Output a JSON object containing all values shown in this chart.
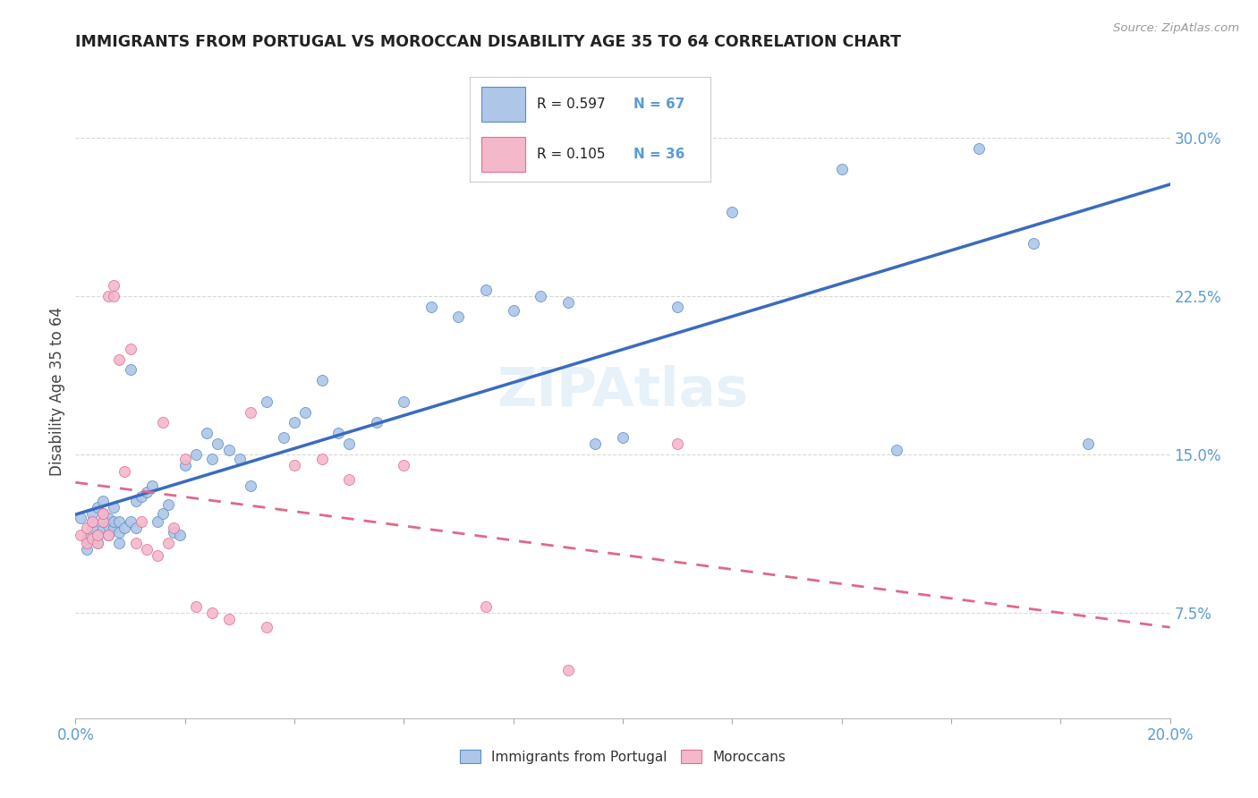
{
  "title": "IMMIGRANTS FROM PORTUGAL VS MOROCCAN DISABILITY AGE 35 TO 64 CORRELATION CHART",
  "source": "Source: ZipAtlas.com",
  "ylabel": "Disability Age 35 to 64",
  "xlim": [
    0.0,
    0.2
  ],
  "ylim": [
    0.025,
    0.335
  ],
  "xticks": [
    0.0,
    0.02,
    0.04,
    0.06,
    0.08,
    0.1,
    0.12,
    0.14,
    0.16,
    0.18,
    0.2
  ],
  "ytick_positions": [
    0.075,
    0.15,
    0.225,
    0.3
  ],
  "ytick_labels": [
    "7.5%",
    "15.0%",
    "22.5%",
    "30.0%"
  ],
  "blue_color": "#aec6e8",
  "pink_color": "#f4b8cb",
  "blue_edge_color": "#5b8ec4",
  "pink_edge_color": "#e07090",
  "blue_line_color": "#3a6bbf",
  "pink_line_color": "#e06888",
  "blue_R": 0.597,
  "pink_R": 0.105,
  "blue_N": 67,
  "pink_N": 36,
  "blue_x": [
    0.001,
    0.002,
    0.002,
    0.003,
    0.003,
    0.003,
    0.004,
    0.004,
    0.004,
    0.005,
    0.005,
    0.005,
    0.005,
    0.006,
    0.006,
    0.006,
    0.007,
    0.007,
    0.007,
    0.008,
    0.008,
    0.008,
    0.009,
    0.01,
    0.01,
    0.011,
    0.011,
    0.012,
    0.013,
    0.014,
    0.015,
    0.016,
    0.017,
    0.018,
    0.019,
    0.02,
    0.022,
    0.024,
    0.025,
    0.026,
    0.028,
    0.03,
    0.032,
    0.035,
    0.038,
    0.04,
    0.042,
    0.045,
    0.048,
    0.05,
    0.055,
    0.06,
    0.065,
    0.07,
    0.075,
    0.08,
    0.085,
    0.09,
    0.095,
    0.1,
    0.11,
    0.12,
    0.14,
    0.15,
    0.165,
    0.175,
    0.185
  ],
  "blue_y": [
    0.12,
    0.105,
    0.11,
    0.115,
    0.118,
    0.122,
    0.112,
    0.108,
    0.125,
    0.115,
    0.118,
    0.122,
    0.128,
    0.112,
    0.116,
    0.12,
    0.115,
    0.118,
    0.125,
    0.118,
    0.108,
    0.113,
    0.115,
    0.118,
    0.19,
    0.115,
    0.128,
    0.13,
    0.132,
    0.135,
    0.118,
    0.122,
    0.126,
    0.113,
    0.112,
    0.145,
    0.15,
    0.16,
    0.148,
    0.155,
    0.152,
    0.148,
    0.135,
    0.175,
    0.158,
    0.165,
    0.17,
    0.185,
    0.16,
    0.155,
    0.165,
    0.175,
    0.22,
    0.215,
    0.228,
    0.218,
    0.225,
    0.222,
    0.155,
    0.158,
    0.22,
    0.265,
    0.285,
    0.152,
    0.295,
    0.25,
    0.155
  ],
  "pink_x": [
    0.001,
    0.002,
    0.002,
    0.003,
    0.003,
    0.004,
    0.004,
    0.005,
    0.005,
    0.006,
    0.006,
    0.007,
    0.007,
    0.008,
    0.009,
    0.01,
    0.011,
    0.012,
    0.013,
    0.015,
    0.016,
    0.017,
    0.018,
    0.02,
    0.022,
    0.025,
    0.028,
    0.032,
    0.035,
    0.04,
    0.045,
    0.05,
    0.06,
    0.075,
    0.09,
    0.11
  ],
  "pink_y": [
    0.112,
    0.108,
    0.115,
    0.118,
    0.11,
    0.108,
    0.112,
    0.118,
    0.122,
    0.112,
    0.225,
    0.23,
    0.225,
    0.195,
    0.142,
    0.2,
    0.108,
    0.118,
    0.105,
    0.102,
    0.165,
    0.108,
    0.115,
    0.148,
    0.078,
    0.075,
    0.072,
    0.17,
    0.068,
    0.145,
    0.148,
    0.138,
    0.145,
    0.078,
    0.048,
    0.155
  ]
}
